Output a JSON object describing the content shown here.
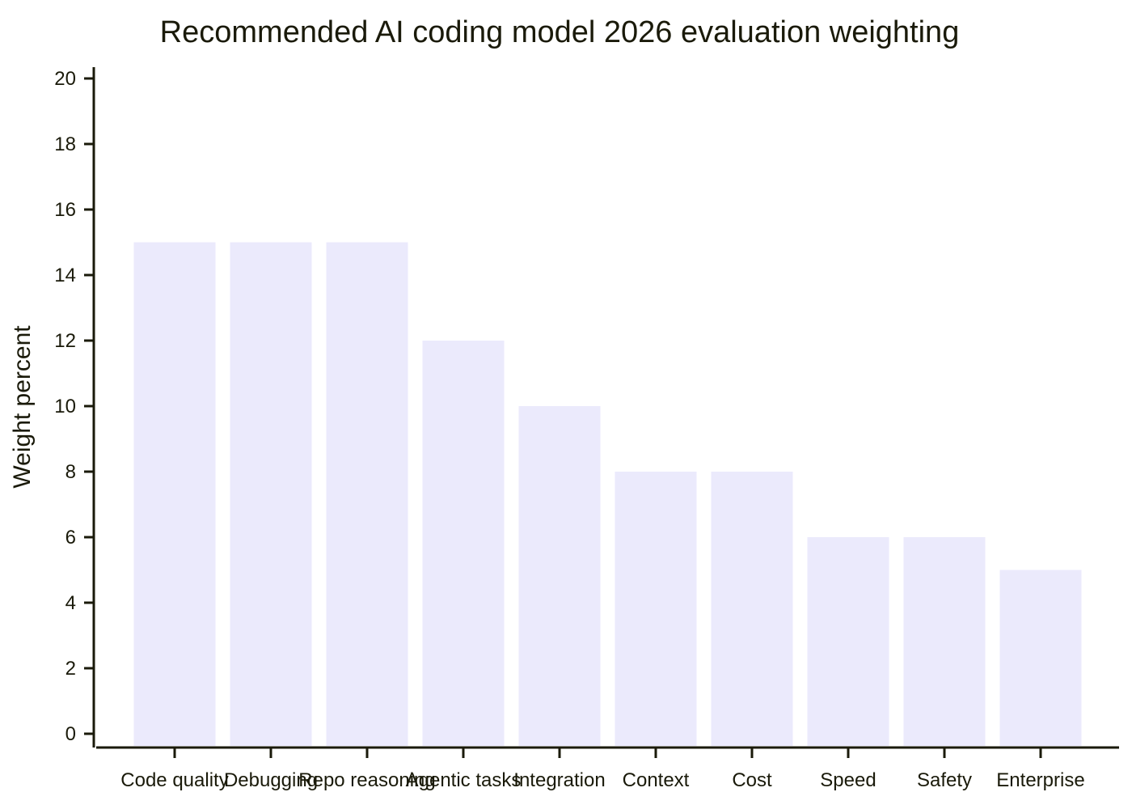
{
  "chart_data": {
    "type": "bar",
    "title": "Recommended AI coding model 2026 evaluation weighting",
    "xlabel": "",
    "ylabel": "Weight percent",
    "categories": [
      "Code quality",
      "Debugging",
      "Repo reasoning",
      "Agentic tasks",
      "Integration",
      "Context",
      "Cost",
      "Speed",
      "Safety",
      "Enterprise"
    ],
    "values": [
      15,
      15,
      15,
      12,
      10,
      8,
      8,
      6,
      6,
      5
    ],
    "ylim": [
      0,
      20
    ],
    "yticks": [
      0,
      2,
      4,
      6,
      8,
      10,
      12,
      14,
      16,
      18,
      20
    ],
    "grid": false,
    "legend": "none",
    "colors": {
      "bar": "#ebeafc",
      "axis": "#1a1a0a",
      "text": "#1a1a0a",
      "background": "#ffffff"
    }
  }
}
